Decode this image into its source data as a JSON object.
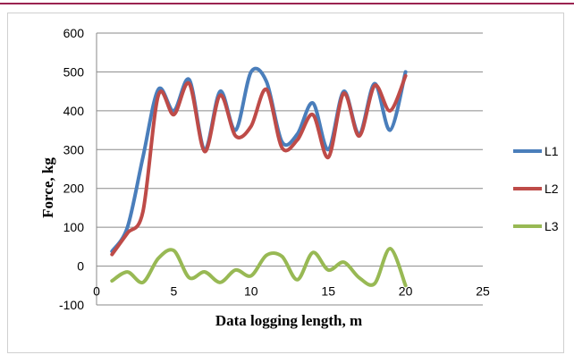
{
  "chart_data": {
    "type": "line",
    "title": "",
    "xlabel": "Data logging length, m",
    "ylabel": "Force, kg",
    "xlim": [
      0,
      25
    ],
    "ylim": [
      -100,
      600
    ],
    "x_ticks": [
      "0",
      "5",
      "10",
      "15",
      "20",
      "25"
    ],
    "y_ticks": [
      "-100",
      "0",
      "100",
      "200",
      "300",
      "400",
      "500",
      "600"
    ],
    "grid": "horizontal",
    "legend_position": "right",
    "series": [
      {
        "name": "L1",
        "color": "#4a7ebb",
        "x": [
          1,
          2,
          3,
          4,
          5,
          6,
          7,
          8,
          9,
          10,
          11,
          12,
          13,
          14,
          15,
          16,
          17,
          18,
          19,
          20
        ],
        "y": [
          38,
          100,
          280,
          455,
          400,
          480,
          300,
          450,
          350,
          500,
          475,
          320,
          340,
          420,
          300,
          450,
          340,
          470,
          350,
          500
        ]
      },
      {
        "name": "L2",
        "color": "#be4b48",
        "x": [
          1,
          2,
          3,
          4,
          5,
          6,
          7,
          8,
          9,
          10,
          11,
          12,
          13,
          14,
          15,
          16,
          17,
          18,
          19,
          20
        ],
        "y": [
          30,
          85,
          140,
          440,
          390,
          470,
          295,
          440,
          335,
          360,
          455,
          305,
          325,
          390,
          280,
          445,
          335,
          465,
          400,
          490
        ]
      },
      {
        "name": "L3",
        "color": "#98b954",
        "x": [
          1,
          2,
          3,
          4,
          5,
          6,
          7,
          8,
          9,
          10,
          11,
          12,
          13,
          14,
          15,
          16,
          17,
          18,
          19,
          20
        ],
        "y": [
          -38,
          -15,
          -42,
          20,
          40,
          -30,
          -15,
          -42,
          -10,
          -25,
          28,
          25,
          -35,
          35,
          -10,
          10,
          -30,
          -45,
          45,
          -50
        ]
      }
    ]
  }
}
